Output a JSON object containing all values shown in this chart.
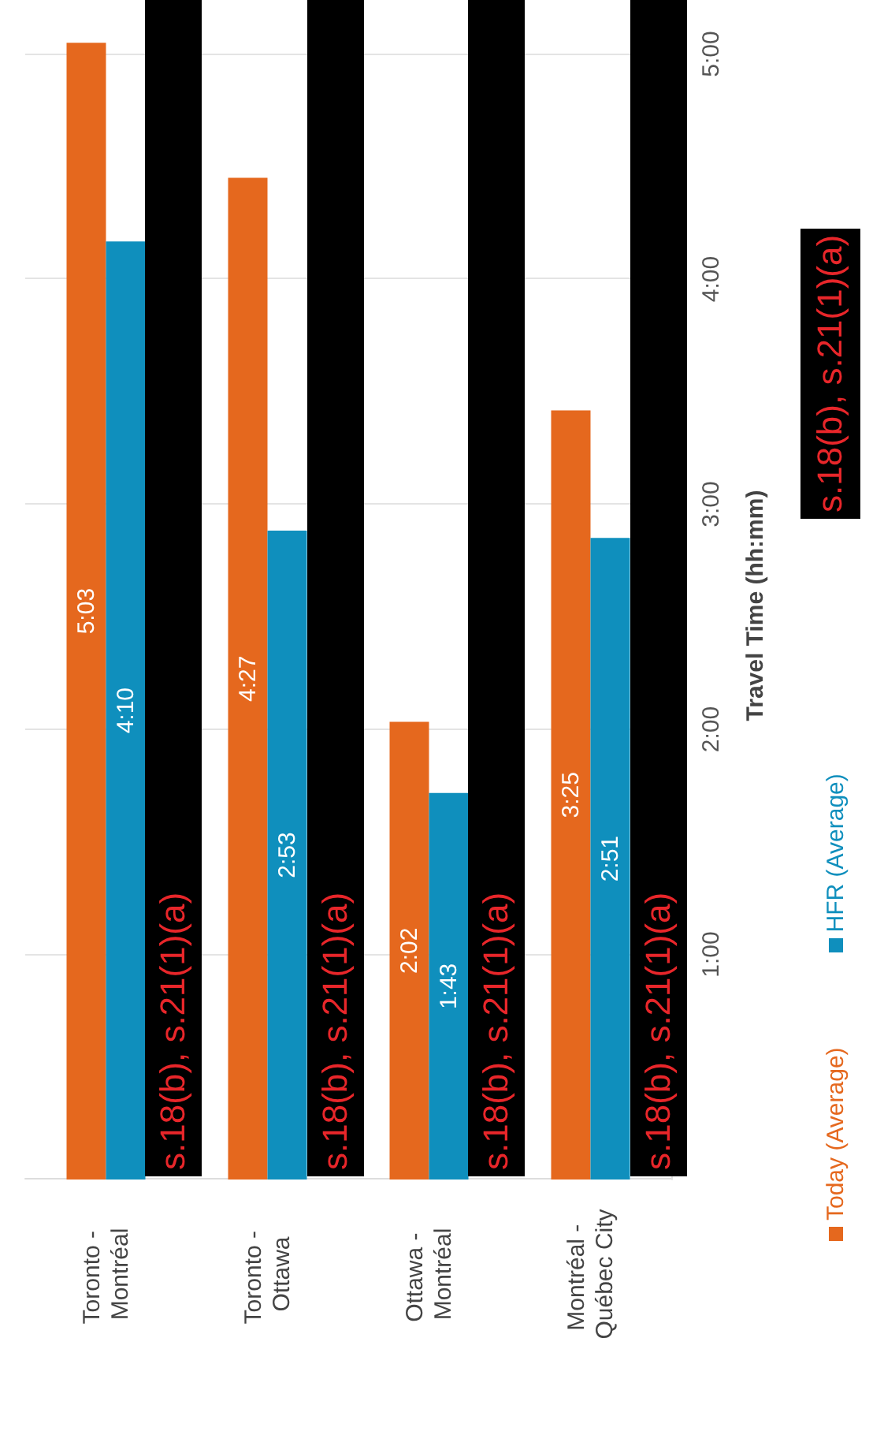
{
  "chart_data": {
    "type": "bar",
    "categories": [
      "Toronto - Montréal",
      "Toronto - Ottawa",
      "Ottawa - Montréal",
      "Montréal - Québec City"
    ],
    "series": [
      {
        "name": "Today (Average)",
        "color": "#e5681e",
        "values": [
          5.05,
          4.45,
          2.033,
          3.417
        ],
        "value_labels": [
          "5:03",
          "4:27",
          "2:02",
          "3:25"
        ]
      },
      {
        "name": "HFR (Average)",
        "color": "#0f8fbd",
        "values": [
          4.167,
          2.883,
          1.717,
          2.85
        ],
        "value_labels": [
          "4:10",
          "2:53",
          "1:43",
          "2:51"
        ]
      }
    ],
    "ylabel": "Travel Time (hh:mm)",
    "ylim": [
      0,
      5.1
    ],
    "yticks": [
      {
        "value": 0,
        "label": null
      },
      {
        "value": 1,
        "label": "1:00"
      },
      {
        "value": 2,
        "label": "2:00"
      },
      {
        "value": 3,
        "label": "3:00"
      },
      {
        "value": 4,
        "label": "4:00"
      },
      {
        "value": 5,
        "label": "5:00"
      }
    ],
    "grid": "y",
    "legend": "right",
    "annotations": [
      "s.18(b), s.21(1)(a)",
      "s.18(b), s.21(1)(a)",
      "s.18(b), s.21(1)(a)",
      "s.18(b), s.21(1)(a)",
      "s.18(b), s.21(1)(a)"
    ]
  }
}
